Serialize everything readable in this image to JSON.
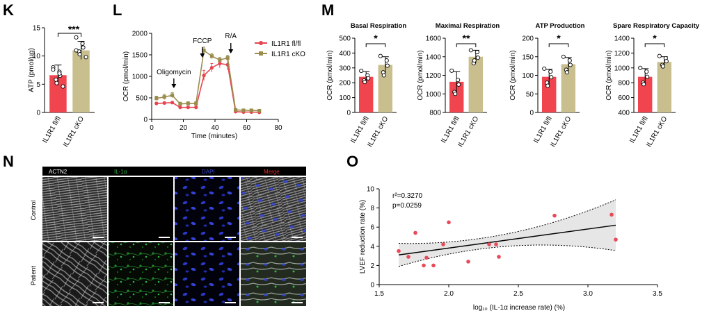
{
  "colors": {
    "fl": "#f0444f",
    "cko": "#c9bf8e",
    "line_fl": "#e6444f",
    "line_cko": "#9a8d4c",
    "dot": "#e84a5a"
  },
  "panel_labels": {
    "K": "K",
    "L": "L",
    "M": "M",
    "N": "N",
    "O": "O"
  },
  "groups": [
    "IL1R1 fl/fl",
    "IL1R1 cKO"
  ],
  "panel_K": {
    "ylabel": "ATP (pmol/μg)",
    "yticks": [
      "0",
      "5",
      "10",
      "15"
    ],
    "sig": "***"
  },
  "panel_L": {
    "ylabel": "OCR (pmol/min)",
    "xlabel": "Time (minutes)",
    "yticks": [
      "0",
      "500",
      "1000",
      "1500",
      "2000"
    ],
    "xticks": [
      "0",
      "20",
      "40",
      "60",
      "80"
    ],
    "annotations": [
      "Oligomycin",
      "FCCP",
      "R/A"
    ],
    "legend": [
      "IL1R1 fl/fl",
      "IL1R1 cKO"
    ]
  },
  "panel_M": [
    {
      "title": "Basal Respiration",
      "ylabel": "OCR (pmol/min)",
      "yticks": [
        "0",
        "100",
        "200",
        "300",
        "400",
        "500"
      ],
      "sig": "*"
    },
    {
      "title": "Maximal Respiration",
      "ylabel": "OCR (pmol/min)",
      "yticks": [
        "800",
        "1000",
        "1200",
        "1400",
        "1600"
      ],
      "sig": "**"
    },
    {
      "title": "ATP Production",
      "ylabel": "OCR (pmol/min)",
      "yticks": [
        "0",
        "50",
        "100",
        "150",
        "200"
      ],
      "sig": "*"
    },
    {
      "title": "Spare Respiratory Capacity",
      "ylabel": "OCR (pmol/min)",
      "yticks": [
        "400",
        "600",
        "800",
        "1000",
        "1200",
        "1400"
      ],
      "sig": "*"
    }
  ],
  "panel_N": {
    "headers": [
      "ACTN2",
      "IL-1α",
      "DAPI",
      "Merge"
    ],
    "header_colors": [
      "#ffffff",
      "#2fb34a",
      "#3c4bd6",
      "#e53030"
    ],
    "rows": [
      "Control",
      "Patient"
    ]
  },
  "panel_O": {
    "ylabel": "LVEF reduction rate (%)",
    "xlabel": "log₁₀ (IL-1α increase rate) (%)",
    "xticks": [
      "1.5",
      "2.0",
      "2.5",
      "3.0",
      "3.5"
    ],
    "yticks": [
      "0",
      "2",
      "4",
      "6",
      "8",
      "10"
    ],
    "stat_r2": "r²=0.3270",
    "stat_p": "p=0.0259"
  },
  "chart_data": [
    {
      "panel": "K",
      "type": "bar",
      "categories": [
        "IL1R1 fl/fl",
        "IL1R1 cKO"
      ],
      "values": [
        6.6,
        11.0
      ],
      "errors": [
        1.8,
        1.6
      ],
      "points": [
        [
          8.0,
          7.2,
          6.5,
          5.8,
          5.2,
          4.6,
          7.6,
          6.9
        ],
        [
          13.3,
          12.2,
          11.5,
          10.8,
          10.3,
          9.8,
          11.0
        ]
      ],
      "ylabel": "ATP (pmol/μg)",
      "ylim": [
        0,
        15
      ],
      "significance": "***"
    },
    {
      "panel": "L",
      "type": "line",
      "x": [
        3,
        8,
        13,
        18,
        23,
        28,
        33,
        38,
        43,
        48,
        53,
        58,
        63,
        68
      ],
      "series": [
        {
          "name": "IL1R1 fl/fl",
          "values": [
            370,
            380,
            390,
            280,
            280,
            280,
            1020,
            1200,
            1300,
            1270,
            180,
            170,
            170,
            165
          ],
          "errors": [
            30,
            30,
            30,
            25,
            25,
            25,
            120,
            100,
            100,
            120,
            20,
            20,
            20,
            20
          ]
        },
        {
          "name": "IL1R1 cKO",
          "values": [
            490,
            520,
            560,
            360,
            370,
            370,
            1600,
            1470,
            1380,
            1430,
            220,
            210,
            210,
            200
          ],
          "errors": [
            50,
            60,
            60,
            40,
            40,
            40,
            80,
            60,
            60,
            60,
            30,
            30,
            30,
            30
          ]
        }
      ],
      "xlabel": "Time (minutes)",
      "ylabel": "OCR (pmol/min)",
      "xlim": [
        0,
        80
      ],
      "ylim": [
        0,
        2000
      ],
      "annotations": [
        {
          "text": "Oligomycin",
          "x": 14
        },
        {
          "text": "FCCP",
          "x": 32
        },
        {
          "text": "R/A",
          "x": 50
        }
      ]
    },
    {
      "panel": "M",
      "subtitle": "Basal Respiration",
      "type": "bar",
      "categories": [
        "IL1R1 fl/fl",
        "IL1R1 cKO"
      ],
      "values": [
        240,
        320
      ],
      "errors": [
        35,
        55
      ],
      "points": [
        [
          280,
          250,
          230,
          215,
          205
        ],
        [
          380,
          350,
          315,
          270,
          250
        ]
      ],
      "ylim": [
        0,
        500
      ],
      "significance": "*"
    },
    {
      "panel": "M",
      "subtitle": "Maximal Respiration",
      "type": "bar",
      "categories": [
        "IL1R1 fl/fl",
        "IL1R1 cKO"
      ],
      "values": [
        1130,
        1400
      ],
      "errors": [
        110,
        70
      ],
      "points": [
        [
          1250,
          1150,
          1100,
          1020,
          1000
        ],
        [
          1470,
          1450,
          1390,
          1330,
          1360
        ]
      ],
      "ylim": [
        800,
        1600
      ],
      "significance": "**"
    },
    {
      "panel": "M",
      "subtitle": "ATP Production",
      "type": "bar",
      "categories": [
        "IL1R1 fl/fl",
        "IL1R1 cKO"
      ],
      "values": [
        96,
        130
      ],
      "errors": [
        20,
        18
      ],
      "points": [
        [
          118,
          110,
          95,
          80,
          72
        ],
        [
          150,
          140,
          128,
          115,
          108
        ]
      ],
      "ylim": [
        0,
        200
      ],
      "significance": "*"
    },
    {
      "panel": "M",
      "subtitle": "Spare Respiratory Capacity",
      "type": "bar",
      "categories": [
        "IL1R1 fl/fl",
        "IL1R1 cKO"
      ],
      "values": [
        880,
        1080
      ],
      "errors": [
        110,
        70
      ],
      "points": [
        [
          1000,
          950,
          880,
          800,
          780
        ],
        [
          1160,
          1130,
          1090,
          1040,
          1020
        ]
      ],
      "ylim": [
        400,
        1400
      ],
      "significance": "*"
    },
    {
      "panel": "O",
      "type": "scatter",
      "points": [
        [
          1.64,
          3.5
        ],
        [
          1.71,
          2.9
        ],
        [
          1.76,
          5.4
        ],
        [
          1.82,
          2.0
        ],
        [
          1.84,
          2.8
        ],
        [
          1.89,
          2.0
        ],
        [
          1.96,
          4.2
        ],
        [
          2.0,
          6.5
        ],
        [
          2.14,
          2.4
        ],
        [
          2.29,
          4.2
        ],
        [
          2.34,
          4.2
        ],
        [
          2.36,
          2.9
        ],
        [
          2.76,
          7.2
        ],
        [
          3.17,
          7.3
        ],
        [
          3.2,
          4.7
        ]
      ],
      "regression": {
        "x": [
          1.64,
          3.2
        ],
        "y": [
          3.1,
          6.2
        ]
      },
      "xlabel": "log₁₀ (IL-1α increase rate) (%)",
      "ylabel": "LVEF reduction rate (%)",
      "xlim": [
        1.5,
        3.5
      ],
      "ylim": [
        0,
        10
      ],
      "annotations": [
        "r²=0.3270",
        "p=0.0259"
      ]
    }
  ]
}
